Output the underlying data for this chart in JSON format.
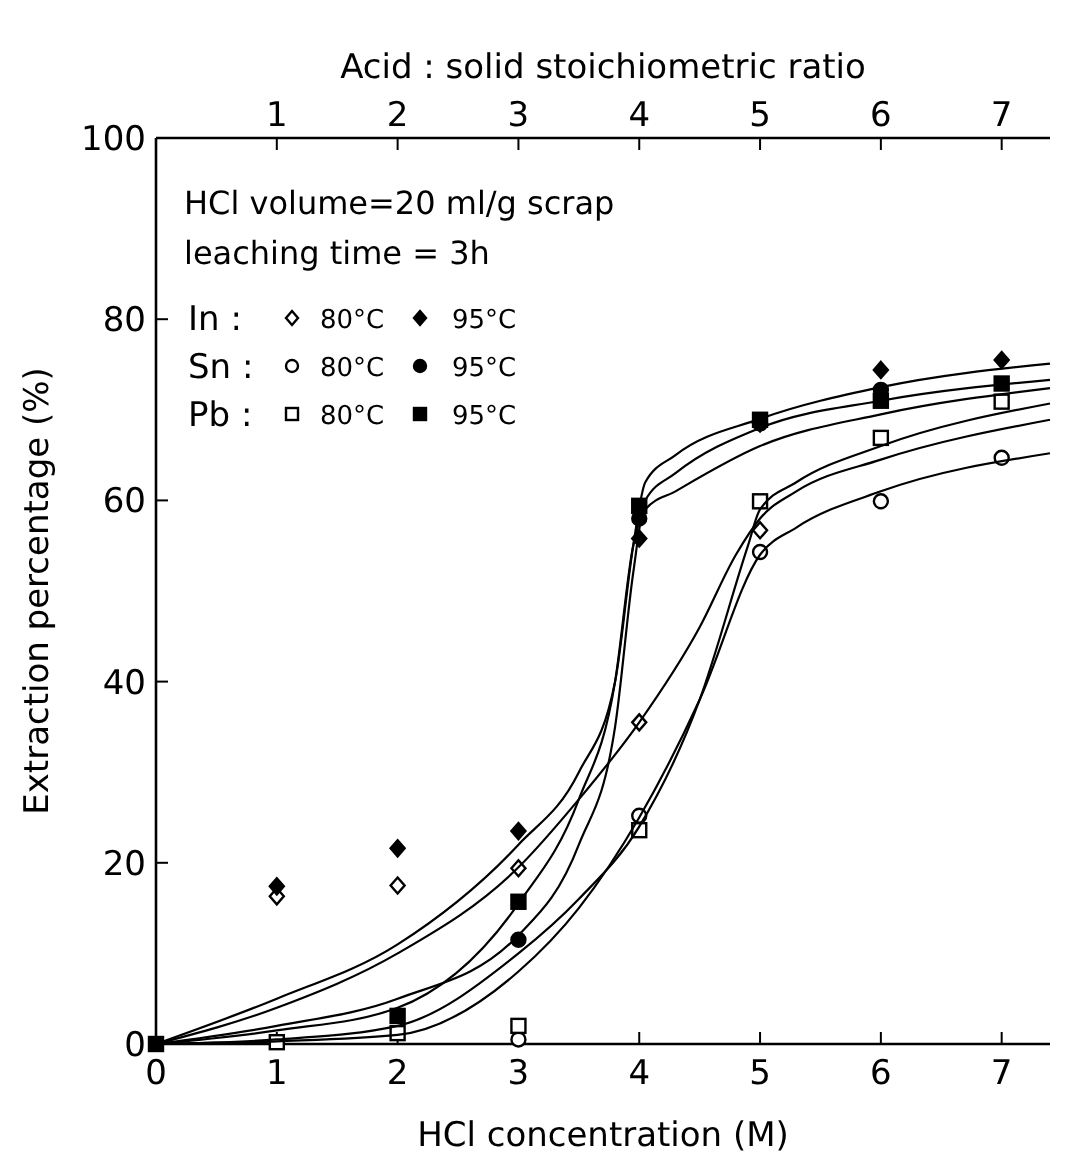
{
  "chart_data": {
    "type": "scatter",
    "xlabel": "HCl concentration (M)",
    "ylabel": "Extraction percentage (%)",
    "x2label": "Acid : solid stoichiometric ratio",
    "xlim": [
      0,
      7.4
    ],
    "xticks": [
      0,
      1,
      2,
      3,
      4,
      5,
      6,
      7
    ],
    "x2lim": [
      0,
      7.4
    ],
    "x2ticks": [
      1,
      2,
      3,
      4,
      5,
      6,
      7
    ],
    "ylim": [
      0,
      100
    ],
    "yticks": [
      0,
      20,
      40,
      60,
      80,
      100
    ],
    "legend": "top left",
    "grid": false,
    "annotations": [
      "HCl volume=20 ml/g scrap",
      "leaching time = 3h",
      "In :",
      "Sn :",
      "Pb :"
    ],
    "x": [
      0,
      1,
      2,
      3,
      4,
      5,
      6,
      7
    ],
    "series": [
      {
        "name": "80°C",
        "marker": "diamond",
        "color": "#ffffff",
        "values": [
          null,
          16.3,
          17.5,
          19.4,
          35.5,
          56.7,
          null,
          null
        ]
      },
      {
        "name": "95°C",
        "marker": "diamond",
        "color": "#000000",
        "values": [
          null,
          17.4,
          21.6,
          23.5,
          55.8,
          68.5,
          74.4,
          75.5
        ]
      },
      {
        "name": "80°C",
        "marker": "circle",
        "color": "#ffffff",
        "values": [
          null,
          null,
          null,
          0.5,
          25.2,
          54.3,
          59.9,
          64.7
        ]
      },
      {
        "name": "95°C",
        "marker": "circle",
        "color": "#000000",
        "values": [
          null,
          null,
          null,
          11.5,
          58,
          68.5,
          72.2,
          null
        ]
      },
      {
        "name": "80°C",
        "marker": "square",
        "color": "#ffffff",
        "values": [
          null,
          0.2,
          1.2,
          2,
          23.6,
          59.9,
          66.9,
          70.9
        ]
      },
      {
        "name": "95°C",
        "marker": "square",
        "color": "#000000",
        "values": [
          0,
          null,
          3.1,
          15.7,
          59.4,
          68.9,
          71,
          72.9
        ]
      },
      {
        "type": "line",
        "color": "#000000",
        "x": [
          0,
          1,
          2,
          3,
          3.5,
          3.8,
          3.95,
          4.05,
          4.3,
          5,
          6,
          7.4
        ],
        "values": [
          0,
          5,
          11,
          22,
          30,
          40,
          55,
          62,
          65,
          69,
          72.5,
          75.1
        ]
      },
      {
        "type": "line",
        "color": "#000000",
        "x": [
          0,
          1,
          2,
          3,
          3.5,
          3.8,
          3.95,
          4.05,
          4.3,
          5,
          6,
          7.4
        ],
        "values": [
          0,
          2,
          5,
          12,
          22,
          35,
          52,
          60,
          63,
          68,
          71,
          73.3
        ]
      },
      {
        "type": "line",
        "color": "#000000",
        "x": [
          0,
          1,
          2,
          3,
          3.5,
          3.8,
          3.95,
          4.05,
          4.3,
          5,
          6,
          7.4
        ],
        "values": [
          0,
          1.5,
          4,
          15.5,
          27,
          40,
          55,
          59,
          61,
          66,
          69.5,
          72.4
        ]
      },
      {
        "type": "line",
        "color": "#000000",
        "x": [
          0,
          1,
          2,
          3,
          3.5,
          4,
          4.5,
          4.8,
          5,
          5.3,
          6,
          7.4
        ],
        "values": [
          0,
          4,
          10,
          19.5,
          27,
          35.5,
          46,
          54,
          58,
          61,
          64.5,
          68.9
        ]
      },
      {
        "type": "line",
        "color": "#000000",
        "x": [
          0,
          1,
          2,
          3,
          3.5,
          4,
          4.5,
          4.9,
          5,
          5.3,
          6,
          7.4
        ],
        "values": [
          0,
          0.5,
          2,
          10,
          16,
          24,
          38,
          55,
          59,
          62,
          66,
          70.7
        ]
      },
      {
        "type": "line",
        "color": "#000000",
        "x": [
          0,
          1,
          2,
          3,
          3.5,
          4,
          4.5,
          5,
          5.3,
          6,
          7.4
        ],
        "values": [
          0,
          0.3,
          1,
          8,
          15,
          25,
          38,
          54,
          57,
          61,
          65.2
        ]
      }
    ]
  }
}
